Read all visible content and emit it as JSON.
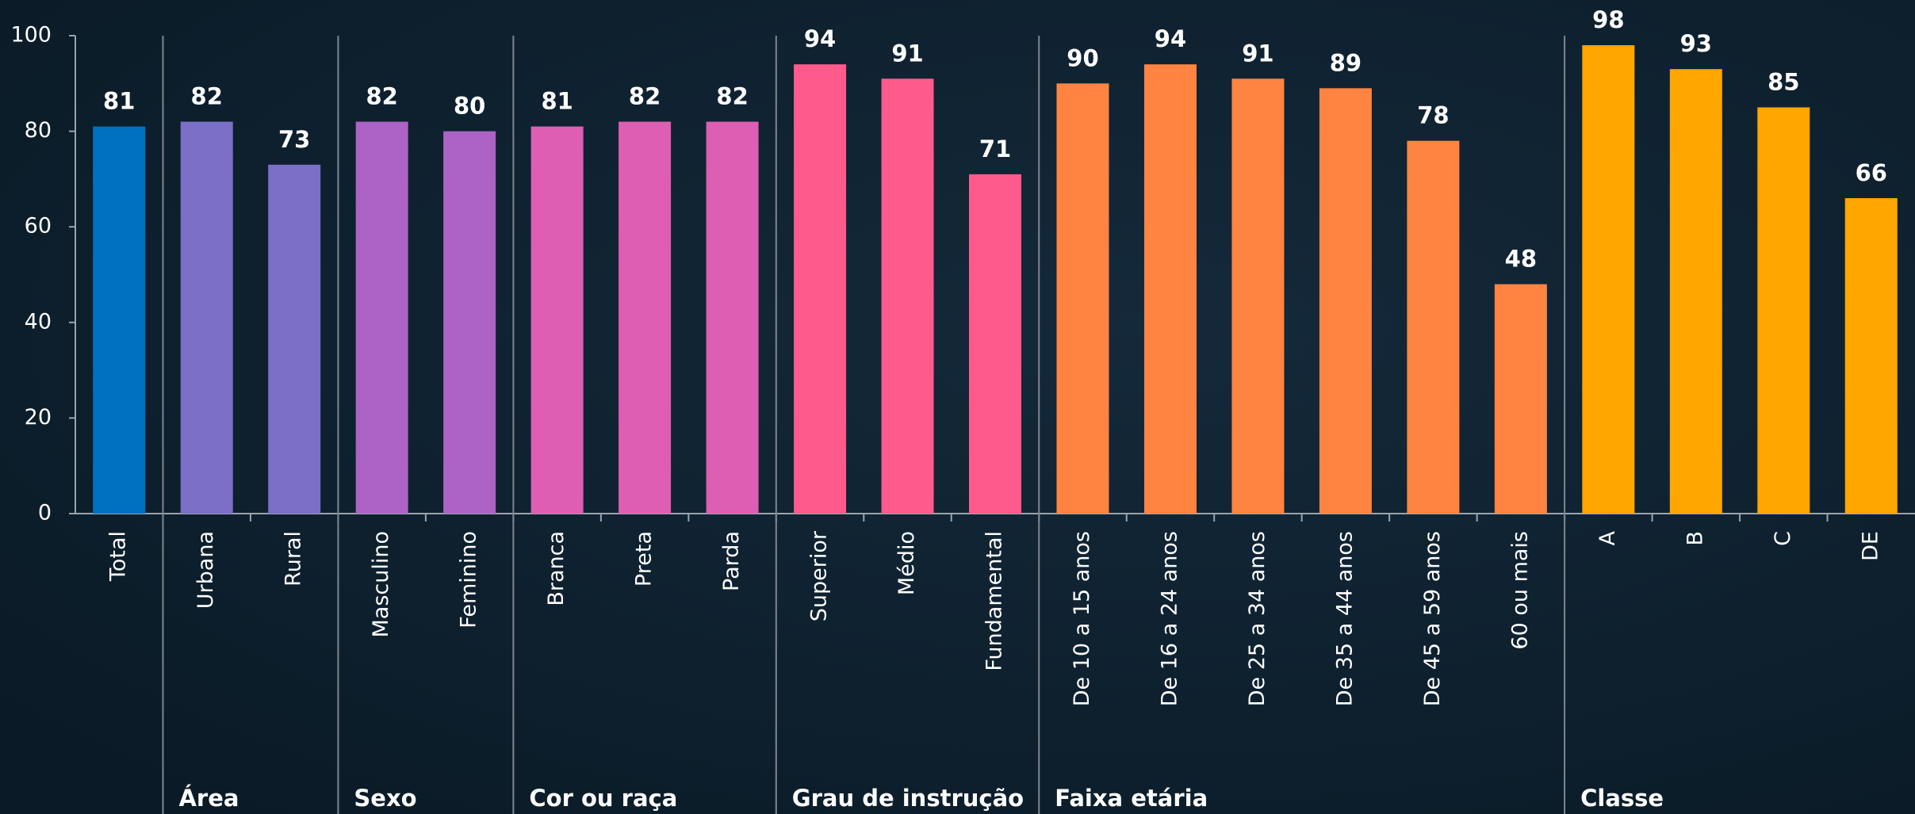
{
  "chart_data": {
    "type": "bar",
    "ylim": [
      0,
      100
    ],
    "yticks": [
      0,
      20,
      40,
      60,
      80,
      100
    ],
    "groups": [
      {
        "categories": [
          "Total"
        ],
        "values": [
          81
        ],
        "color": "#0070c0"
      },
      {
        "name": "Área",
        "categories": [
          "Urbana",
          "Rural"
        ],
        "values": [
          82,
          73
        ],
        "color": "#7b6fc8"
      },
      {
        "name": "Sexo",
        "categories": [
          "Masculino",
          "Feminino"
        ],
        "values": [
          82,
          80
        ],
        "color": "#ac63c5"
      },
      {
        "name": "Cor ou raça",
        "categories": [
          "Branca",
          "Preta",
          "Parda"
        ],
        "values": [
          81,
          82,
          82
        ],
        "color": "#de5eb3"
      },
      {
        "name": "Grau de instrução",
        "categories": [
          "Superior",
          "Médio",
          "Fundamental"
        ],
        "values": [
          94,
          91,
          71
        ],
        "color": "#ff5a8c"
      },
      {
        "name": "Faixa etária",
        "categories": [
          "De 10 a 15 anos",
          "De 16 a 24 anos",
          "De 25 a 34 anos",
          "De 35 a 44 anos",
          "De 45 a 59 anos",
          "60 ou mais"
        ],
        "values": [
          90,
          94,
          91,
          89,
          78,
          48
        ],
        "color": "#ff8441"
      },
      {
        "name": "Classe",
        "categories": [
          "A",
          "B",
          "C",
          "DE"
        ],
        "values": [
          98,
          93,
          85,
          66
        ],
        "color": "#ffa600"
      }
    ]
  }
}
